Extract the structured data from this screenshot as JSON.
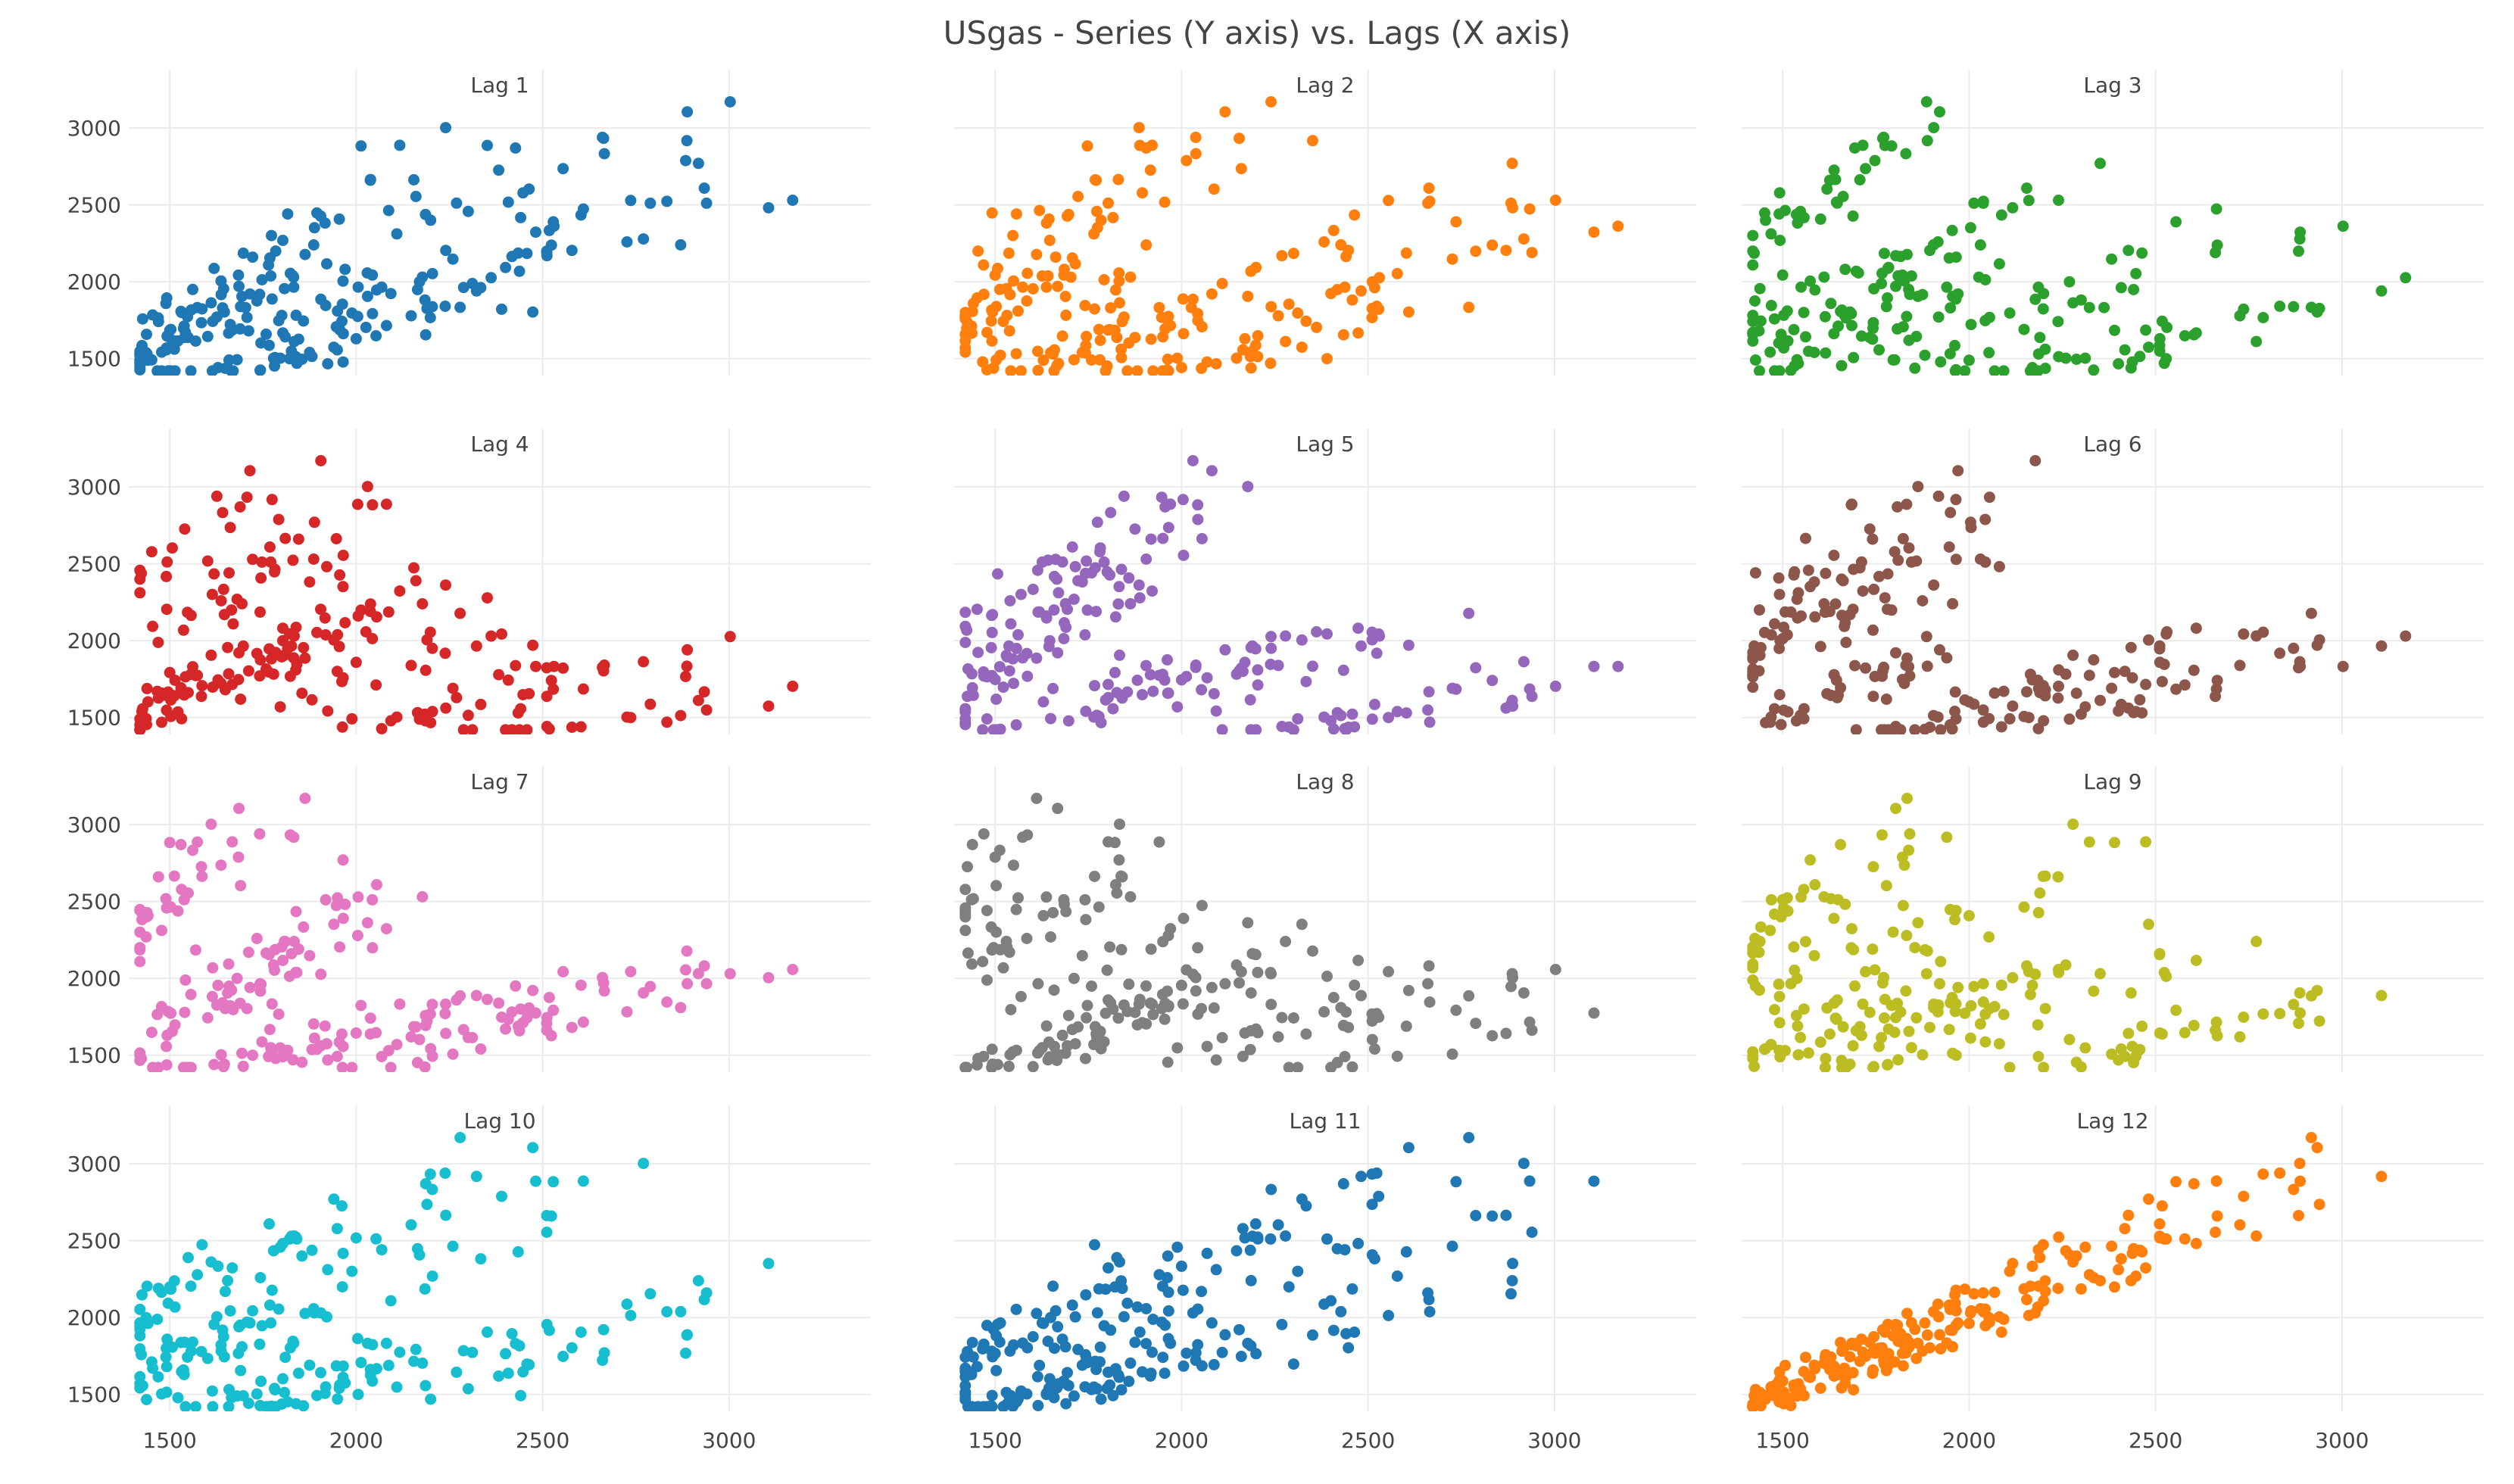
{
  "chart_data": {
    "type": "scatter",
    "title": "USgas - Series (Y axis) vs. Lags (X axis)",
    "grid": true,
    "legend": "none",
    "x_ticks": [
      1500,
      2000,
      2500,
      3000
    ],
    "y_ticks": [
      1500,
      2000,
      2500,
      3000
    ],
    "xlim": [
      1390,
      3380
    ],
    "ylim": [
      1390,
      3380
    ],
    "series": [
      {
        "name": "Lag 1",
        "color": "#1f77b4"
      },
      {
        "name": "Lag 2",
        "color": "#ff7f0e"
      },
      {
        "name": "Lag 3",
        "color": "#2ca02c"
      },
      {
        "name": "Lag 4",
        "color": "#d62728"
      },
      {
        "name": "Lag 5",
        "color": "#9467bd"
      },
      {
        "name": "Lag 6",
        "color": "#8c564b"
      },
      {
        "name": "Lag 7",
        "color": "#e377c2"
      },
      {
        "name": "Lag 8",
        "color": "#7f7f7f"
      },
      {
        "name": "Lag 9",
        "color": "#bcbd22"
      },
      {
        "name": "Lag 10",
        "color": "#17becf"
      },
      {
        "name": "Lag 11",
        "color": "#1f77b4"
      },
      {
        "name": "Lag 12",
        "color": "#ff7f0e"
      }
    ]
  }
}
